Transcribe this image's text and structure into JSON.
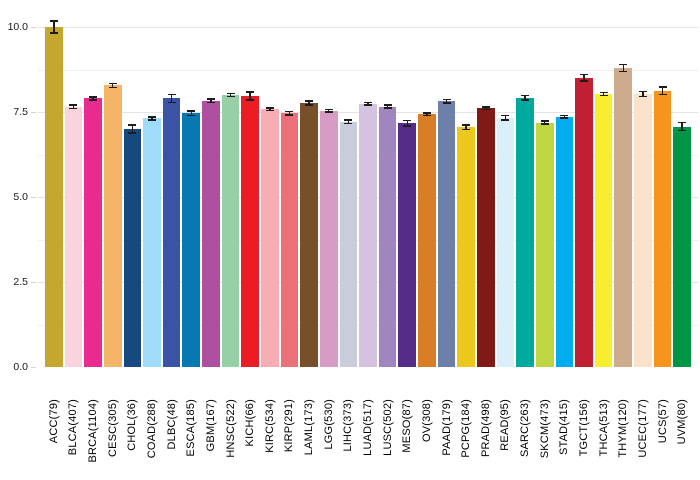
{
  "chart_data": {
    "type": "bar",
    "title": "",
    "xlabel": "",
    "ylabel": "",
    "categories": [
      "ACC(79)",
      "BLCA(407)",
      "BRCA(1104)",
      "CESC(305)",
      "CHOL(36)",
      "COAD(288)",
      "DLBC(48)",
      "ESCA(185)",
      "GBM(167)",
      "HNSC(522)",
      "KICH(66)",
      "KIRC(534)",
      "KIRP(291)",
      "LAML(173)",
      "LGG(530)",
      "LIHC(373)",
      "LUAD(517)",
      "LUSC(502)",
      "MESO(87)",
      "OV(308)",
      "PAAD(179)",
      "PCPG(184)",
      "PRAD(498)",
      "READ(95)",
      "SARC(263)",
      "SKCM(473)",
      "STAD(415)",
      "TGCT(156)",
      "THCA(513)",
      "THYM(120)",
      "UCEC(177)",
      "UCS(57)",
      "UVM(80)"
    ],
    "values": [
      10.0,
      7.65,
      7.9,
      8.28,
      7.0,
      7.31,
      7.9,
      7.46,
      7.83,
      8.0,
      7.97,
      7.58,
      7.46,
      7.77,
      7.54,
      7.21,
      7.74,
      7.66,
      7.17,
      7.43,
      7.82,
      7.05,
      7.61,
      7.33,
      7.92,
      7.19,
      7.36,
      8.51,
      8.03,
      8.79,
      8.03,
      8.12,
      7.07
    ],
    "errors": [
      0.18,
      0.05,
      0.04,
      0.06,
      0.12,
      0.05,
      0.12,
      0.07,
      0.05,
      0.04,
      0.12,
      0.04,
      0.05,
      0.06,
      0.04,
      0.05,
      0.04,
      0.04,
      0.08,
      0.04,
      0.05,
      0.07,
      0.04,
      0.07,
      0.07,
      0.05,
      0.04,
      0.1,
      0.04,
      0.1,
      0.08,
      0.11,
      0.12
    ],
    "bar_colors": [
      "#c5a62f",
      "#fad3dd",
      "#e92a8f",
      "#f5b569",
      "#15497f",
      "#9edcf9",
      "#3a53a4",
      "#0679b3",
      "#ae4fa0",
      "#97d0a7",
      "#ec1c24",
      "#f8adb5",
      "#ea7178",
      "#774f2a",
      "#d69cc6",
      "#cacbdb",
      "#d4c2e0",
      "#a085bf",
      "#552d89",
      "#d87e27",
      "#6e80a9",
      "#ecc71c",
      "#801a17",
      "#daeffa",
      "#00a99d",
      "#bdd642",
      "#00aeef",
      "#c02032",
      "#f7ee2f",
      "#cfab8d",
      "#fae3ca",
      "#f7941e",
      "#009648"
    ],
    "ylim": [
      0,
      10.5
    ],
    "ytick_labels": [
      "0.0",
      "2.5",
      "5.0",
      "7.5",
      "10.0"
    ],
    "ytick_values": [
      0.0,
      2.5,
      5.0,
      7.5,
      10.0
    ],
    "minor_gridline_values": [
      1.25,
      3.75,
      6.25,
      8.75
    ],
    "grid": true,
    "legend": false,
    "error_bar_color": "#1c1c1c",
    "background_color": "#ffffff"
  }
}
